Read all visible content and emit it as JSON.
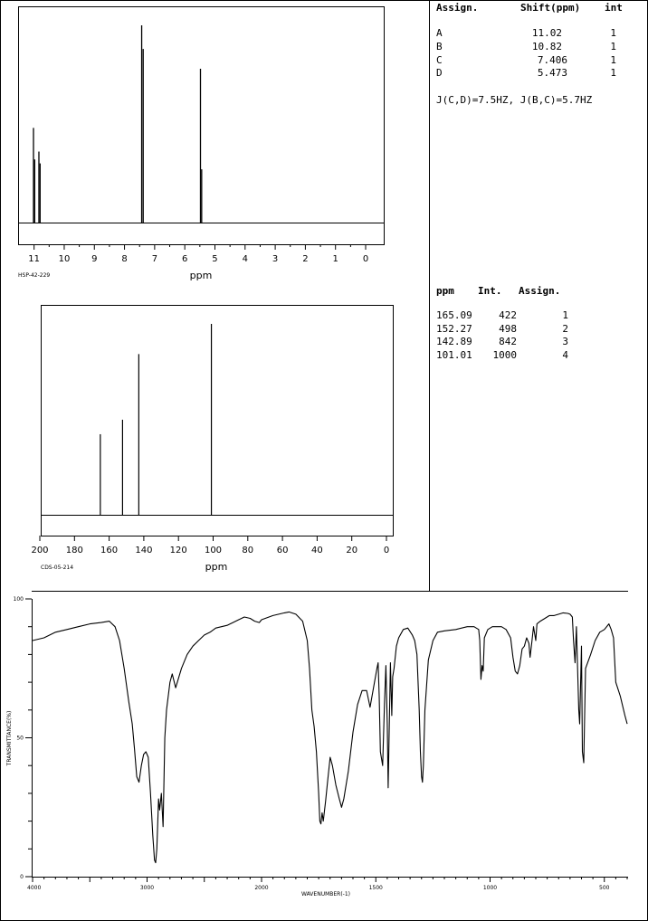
{
  "h_table": {
    "headers": [
      "Assign.",
      "Shift(ppm)",
      "int"
    ],
    "rows": [
      [
        "A",
        "11.02",
        "1"
      ],
      [
        "B",
        "10.82",
        "1"
      ],
      [
        "C",
        "7.406",
        "1"
      ],
      [
        "D",
        "5.473",
        "1"
      ]
    ],
    "coupling": "J(C,D)=7.5HZ, J(B,C)=5.7HZ"
  },
  "c_table": {
    "headers": [
      "ppm",
      "Int.",
      "Assign."
    ],
    "rows": [
      [
        "165.09",
        "422",
        "1"
      ],
      [
        "152.27",
        "498",
        "2"
      ],
      [
        "142.89",
        "842",
        "3"
      ],
      [
        "101.01",
        "1000",
        "4"
      ]
    ]
  },
  "chart_data": [
    {
      "type": "line",
      "id": "hnmr",
      "code": "HSP-42-229",
      "xlabel": "ppm",
      "xlim": [
        11.5,
        -0.6
      ],
      "x_ticks": [
        11,
        10,
        9,
        8,
        7,
        6,
        5,
        4,
        3,
        2,
        1,
        0
      ],
      "peaks": [
        {
          "x": 11.02,
          "y": 0.48
        },
        {
          "x": 10.98,
          "y": 0.32
        },
        {
          "x": 10.84,
          "y": 0.36
        },
        {
          "x": 10.8,
          "y": 0.3
        },
        {
          "x": 7.43,
          "y": 1.0
        },
        {
          "x": 7.38,
          "y": 0.88
        },
        {
          "x": 5.48,
          "y": 0.78
        },
        {
          "x": 5.44,
          "y": 0.27
        }
      ]
    },
    {
      "type": "bar",
      "id": "cnmr",
      "code": "CDS-05-214",
      "xlabel": "ppm",
      "xlim": [
        200,
        -5
      ],
      "x_ticks": [
        200,
        180,
        160,
        140,
        120,
        100,
        80,
        60,
        40,
        20,
        0
      ],
      "x": [
        165.09,
        152.27,
        142.89,
        101.01
      ],
      "values": [
        422,
        498,
        842,
        1000
      ]
    },
    {
      "type": "line",
      "id": "ir",
      "xlabel": "WAVENUMBER(-1)",
      "ylabel": "TRANSMITTANCE(%)",
      "xlim": [
        4000,
        400
      ],
      "ylim": [
        0,
        100
      ],
      "x_ticks": [
        4000,
        3000,
        2000,
        1500,
        1000,
        500
      ],
      "y_ticks": [
        0,
        50,
        100
      ],
      "points": [
        [
          4000,
          85
        ],
        [
          3900,
          86
        ],
        [
          3800,
          88
        ],
        [
          3700,
          89
        ],
        [
          3600,
          90
        ],
        [
          3500,
          91
        ],
        [
          3400,
          91.5
        ],
        [
          3330,
          92
        ],
        [
          3280,
          90
        ],
        [
          3240,
          85
        ],
        [
          3200,
          75
        ],
        [
          3160,
          63
        ],
        [
          3130,
          55
        ],
        [
          3110,
          46
        ],
        [
          3090,
          36
        ],
        [
          3070,
          34
        ],
        [
          3050,
          40
        ],
        [
          3030,
          44
        ],
        [
          3010,
          45
        ],
        [
          2990,
          43
        ],
        [
          2970,
          30
        ],
        [
          2950,
          15
        ],
        [
          2935,
          6
        ],
        [
          2925,
          5
        ],
        [
          2915,
          10
        ],
        [
          2900,
          28
        ],
        [
          2890,
          24
        ],
        [
          2875,
          30
        ],
        [
          2860,
          18
        ],
        [
          2845,
          50
        ],
        [
          2830,
          60
        ],
        [
          2800,
          70
        ],
        [
          2780,
          73
        ],
        [
          2750,
          68
        ],
        [
          2700,
          75
        ],
        [
          2650,
          80
        ],
        [
          2600,
          83
        ],
        [
          2550,
          85
        ],
        [
          2500,
          87
        ],
        [
          2450,
          88
        ],
        [
          2400,
          89.5
        ],
        [
          2300,
          90.5
        ],
        [
          2250,
          91.5
        ],
        [
          2200,
          92.5
        ],
        [
          2150,
          93.5
        ],
        [
          2100,
          93
        ],
        [
          2060,
          92
        ],
        [
          2020,
          91.5
        ],
        [
          2000,
          92.5
        ],
        [
          1950,
          94
        ],
        [
          1900,
          95
        ],
        [
          1880,
          95.3
        ],
        [
          1850,
          94.5
        ],
        [
          1820,
          92
        ],
        [
          1800,
          85
        ],
        [
          1790,
          75
        ],
        [
          1780,
          60
        ],
        [
          1770,
          54
        ],
        [
          1760,
          45
        ],
        [
          1750,
          30
        ],
        [
          1745,
          20
        ],
        [
          1740,
          19
        ],
        [
          1735,
          23
        ],
        [
          1730,
          20
        ],
        [
          1720,
          27
        ],
        [
          1710,
          35
        ],
        [
          1700,
          43
        ],
        [
          1690,
          40
        ],
        [
          1675,
          33
        ],
        [
          1660,
          28
        ],
        [
          1650,
          25
        ],
        [
          1640,
          28
        ],
        [
          1620,
          38
        ],
        [
          1600,
          52
        ],
        [
          1580,
          62
        ],
        [
          1560,
          67
        ],
        [
          1540,
          67
        ],
        [
          1525,
          61
        ],
        [
          1510,
          68
        ],
        [
          1495,
          75
        ],
        [
          1490,
          77
        ],
        [
          1485,
          65
        ],
        [
          1480,
          45
        ],
        [
          1470,
          40
        ],
        [
          1462,
          62
        ],
        [
          1456,
          76
        ],
        [
          1450,
          55
        ],
        [
          1446,
          32
        ],
        [
          1442,
          50
        ],
        [
          1436,
          77
        ],
        [
          1430,
          58
        ],
        [
          1426,
          72
        ],
        [
          1420,
          75
        ],
        [
          1410,
          83
        ],
        [
          1400,
          86
        ],
        [
          1380,
          89
        ],
        [
          1360,
          89.5
        ],
        [
          1340,
          87
        ],
        [
          1330,
          85
        ],
        [
          1320,
          80
        ],
        [
          1310,
          60
        ],
        [
          1305,
          45
        ],
        [
          1300,
          36
        ],
        [
          1296,
          34
        ],
        [
          1292,
          40
        ],
        [
          1285,
          60
        ],
        [
          1270,
          78
        ],
        [
          1250,
          85
        ],
        [
          1230,
          88
        ],
        [
          1200,
          88.5
        ],
        [
          1150,
          89
        ],
        [
          1100,
          90
        ],
        [
          1070,
          90
        ],
        [
          1050,
          89
        ],
        [
          1045,
          85
        ],
        [
          1040,
          71
        ],
        [
          1035,
          76
        ],
        [
          1030,
          74
        ],
        [
          1025,
          86
        ],
        [
          1010,
          89
        ],
        [
          990,
          90
        ],
        [
          970,
          90
        ],
        [
          950,
          90
        ],
        [
          930,
          89
        ],
        [
          910,
          86
        ],
        [
          900,
          79
        ],
        [
          890,
          74
        ],
        [
          880,
          73
        ],
        [
          870,
          76
        ],
        [
          860,
          82
        ],
        [
          850,
          83
        ],
        [
          840,
          86
        ],
        [
          830,
          84
        ],
        [
          825,
          79
        ],
        [
          818,
          84
        ],
        [
          810,
          90
        ],
        [
          800,
          85
        ],
        [
          795,
          91
        ],
        [
          780,
          92
        ],
        [
          760,
          93
        ],
        [
          740,
          94
        ],
        [
          720,
          94
        ],
        [
          700,
          94.5
        ],
        [
          680,
          95
        ],
        [
          660,
          94.8
        ],
        [
          650,
          94.5
        ],
        [
          640,
          93.5
        ],
        [
          635,
          85
        ],
        [
          628,
          77
        ],
        [
          622,
          90
        ],
        [
          612,
          60
        ],
        [
          608,
          55
        ],
        [
          600,
          83
        ],
        [
          596,
          45
        ],
        [
          590,
          41
        ],
        [
          582,
          75
        ],
        [
          560,
          80
        ],
        [
          540,
          85
        ],
        [
          520,
          88
        ],
        [
          500,
          89
        ],
        [
          480,
          91
        ],
        [
          470,
          89
        ],
        [
          460,
          86
        ],
        [
          450,
          70
        ],
        [
          430,
          65
        ],
        [
          410,
          58
        ],
        [
          400,
          55
        ]
      ]
    }
  ]
}
